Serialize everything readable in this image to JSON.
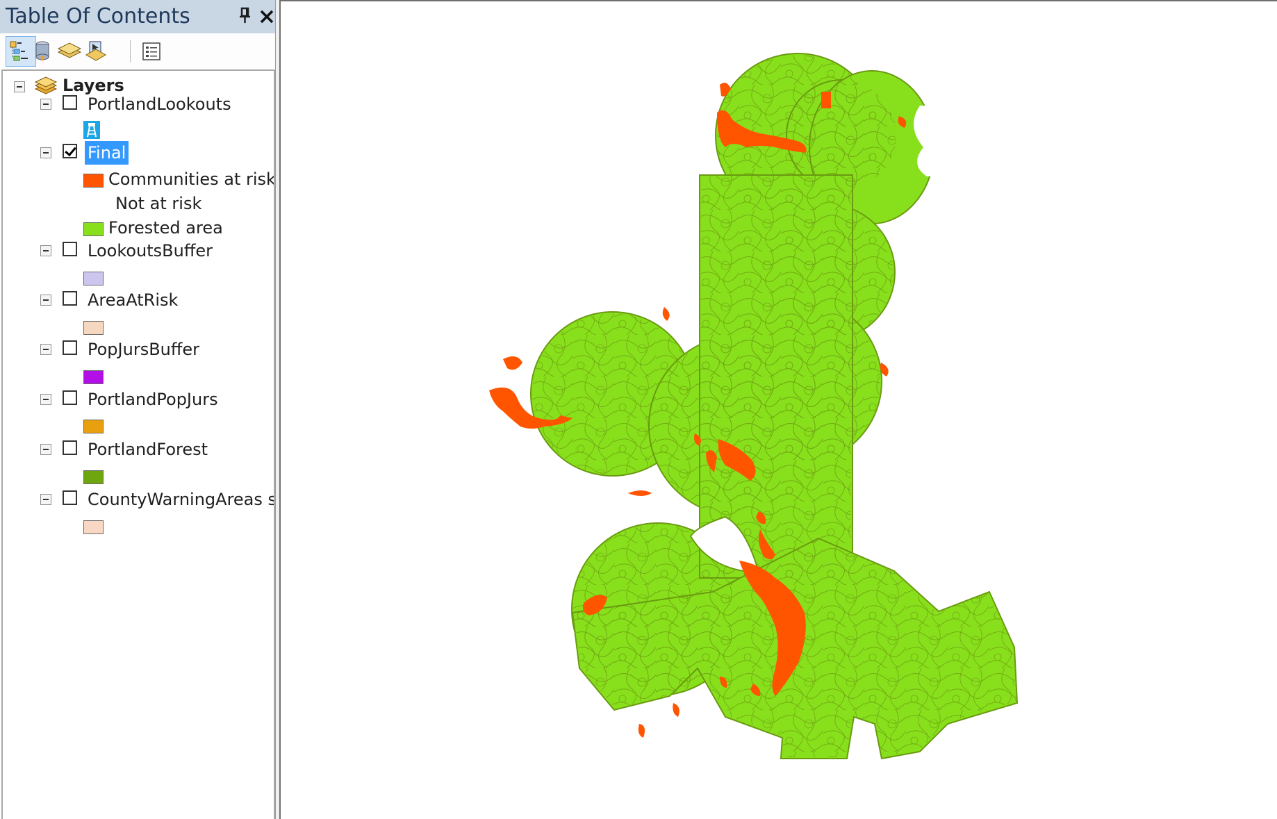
{
  "toc": {
    "title": "Table Of Contents",
    "pin_icon": "pin-icon",
    "close_icon": "close-icon",
    "toolbar": {
      "buttons": [
        {
          "name": "list-by-drawing-order",
          "icon": "list-by-drawing-order-icon",
          "active": true
        },
        {
          "name": "list-by-source",
          "icon": "list-by-source-icon",
          "active": false
        },
        {
          "name": "list-by-visibility",
          "icon": "list-by-visibility-icon",
          "active": false
        },
        {
          "name": "list-by-selection",
          "icon": "list-by-selection-icon",
          "active": false
        },
        {
          "name": "options",
          "icon": "options-icon",
          "active": false
        }
      ]
    },
    "root": {
      "label": "Layers",
      "icon": "layers-stack-icon"
    },
    "layers": [
      {
        "label": "PortlandLookouts",
        "checked": false,
        "selected": false,
        "symbol": "lookout-tower-icon",
        "symbol_color": "#1ea5e6"
      },
      {
        "label": "Final",
        "checked": true,
        "selected": true,
        "legend": [
          {
            "label": "Communities at risk",
            "color": "#ff5500"
          },
          {
            "label": "Not at risk",
            "color": null
          },
          {
            "label": "Forested area",
            "color": "#88e01c"
          }
        ]
      },
      {
        "label": "LookoutsBuffer",
        "checked": false,
        "selected": false,
        "color": "#ccc6ef"
      },
      {
        "label": "AreaAtRisk",
        "checked": false,
        "selected": false,
        "color": "#f6d8c0"
      },
      {
        "label": "PopJursBuffer",
        "checked": false,
        "selected": false,
        "color": "#b40ee6"
      },
      {
        "label": "PortlandPopJurs",
        "checked": false,
        "selected": false,
        "color": "#e8a00e"
      },
      {
        "label": "PortlandForest",
        "checked": false,
        "selected": false,
        "color": "#6ea610"
      },
      {
        "label": "CountyWarningAreas sele",
        "checked": false,
        "selected": false,
        "color": "#f8d7c4"
      }
    ]
  },
  "map": {
    "forest_color": "#88e01c",
    "outline_color": "#6a9a10",
    "risk_color": "#ff5500"
  }
}
